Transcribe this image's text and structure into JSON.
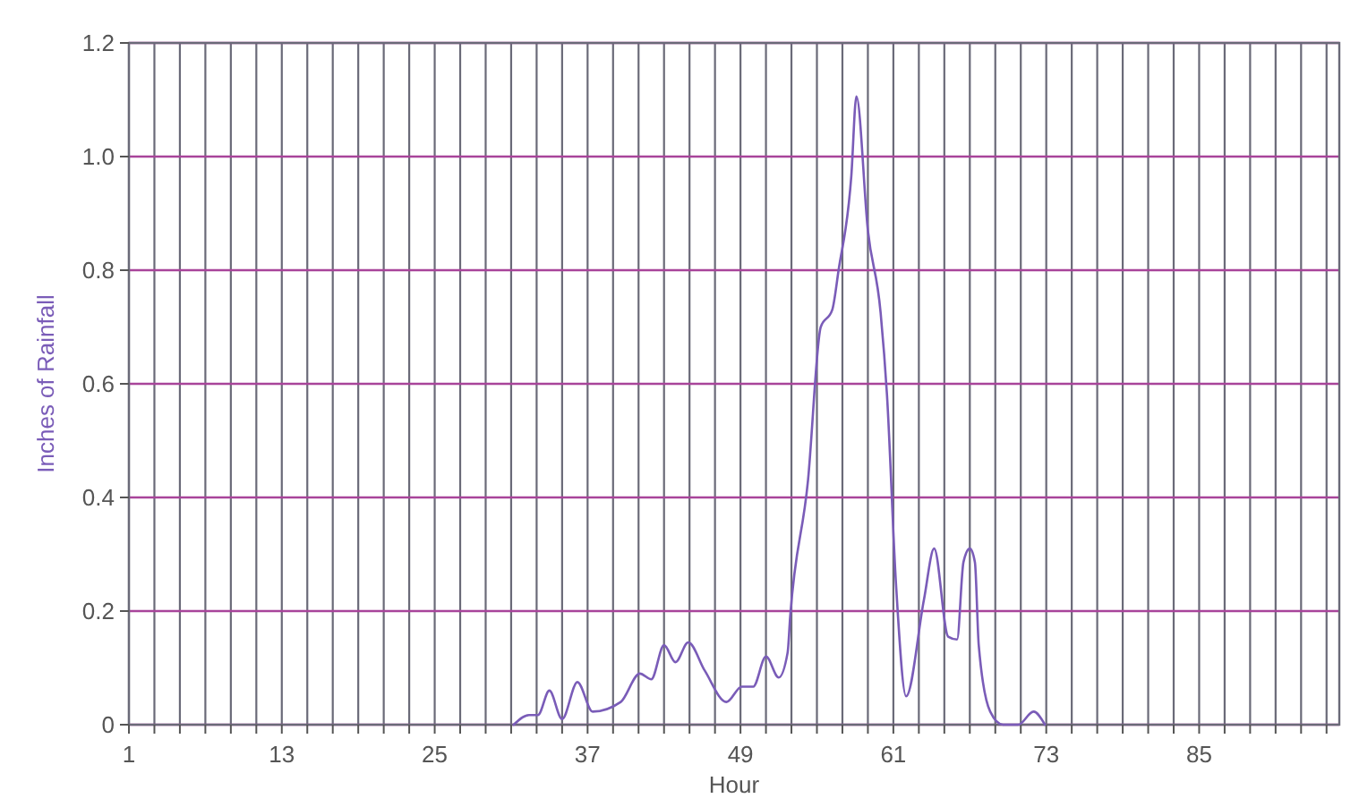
{
  "chart_data": {
    "type": "line",
    "xlabel": "Hour",
    "ylabel": "Inches of Rainfall",
    "x": [
      31.2,
      32.4,
      33.1,
      34,
      35,
      36.2,
      37.4,
      39.6,
      41.1,
      42,
      43,
      43.9,
      44.9,
      46.2,
      47.9,
      49.1,
      50,
      51,
      52,
      52.7,
      52.9,
      54.3,
      55.3,
      56.2,
      56.7,
      57.7,
      58.1,
      59,
      60,
      60.5,
      61.2,
      62,
      63.4,
      64.2,
      65.3,
      66,
      66.5,
      67,
      67.4,
      67.7,
      68.6,
      69.6,
      70.8,
      72,
      72.9
    ],
    "series": [
      {
        "color": "#7a5cb8",
        "values": [
          0,
          0.017,
          0.017,
          0.06,
          0.01,
          0.075,
          0.023,
          0.04,
          0.09,
          0.08,
          0.14,
          0.11,
          0.145,
          0.095,
          0.04,
          0.067,
          0.067,
          0.12,
          0.083,
          0.127,
          0.19,
          0.43,
          0.7,
          0.73,
          0.8,
          0.966,
          1.106,
          0.87,
          0.725,
          0.58,
          0.25,
          0.05,
          0.22,
          0.31,
          0.155,
          0.15,
          0.286,
          0.31,
          0.286,
          0.14,
          0.023,
          0,
          0,
          0.023,
          0
        ]
      }
    ],
    "xlim": [
      1,
      96
    ],
    "xticks": [
      1,
      {
        "value": 3,
        "label": null
      },
      {
        "value": 5,
        "label": null
      },
      {
        "value": 7,
        "label": null
      },
      {
        "value": 9,
        "label": null
      },
      {
        "value": 11,
        "label": null
      },
      13,
      {
        "value": 15,
        "label": null
      },
      {
        "value": 17,
        "label": null
      },
      {
        "value": 19,
        "label": null
      },
      {
        "value": 21,
        "label": null
      },
      {
        "value": 23,
        "label": null
      },
      25,
      {
        "value": 27,
        "label": null
      },
      {
        "value": 29,
        "label": null
      },
      {
        "value": 31,
        "label": null
      },
      {
        "value": 33,
        "label": null
      },
      {
        "value": 35,
        "label": null
      },
      37,
      {
        "value": 39,
        "label": null
      },
      {
        "value": 41,
        "label": null
      },
      {
        "value": 43,
        "label": null
      },
      {
        "value": 45,
        "label": null
      },
      {
        "value": 47,
        "label": null
      },
      49,
      {
        "value": 51,
        "label": null
      },
      {
        "value": 53,
        "label": null
      },
      {
        "value": 55,
        "label": null
      },
      {
        "value": 57,
        "label": null
      },
      {
        "value": 59,
        "label": null
      },
      61,
      {
        "value": 63,
        "label": null
      },
      {
        "value": 65,
        "label": null
      },
      {
        "value": 67,
        "label": null
      },
      {
        "value": 69,
        "label": null
      },
      {
        "value": 71,
        "label": null
      },
      73,
      {
        "value": 75,
        "label": null
      },
      {
        "value": 77,
        "label": null
      },
      {
        "value": 79,
        "label": null
      },
      {
        "value": 81,
        "label": null
      },
      {
        "value": 83,
        "label": null
      },
      85,
      {
        "value": 87,
        "label": null
      },
      {
        "value": 89,
        "label": null
      },
      {
        "value": 91,
        "label": null
      },
      {
        "value": 93,
        "label": null
      },
      {
        "value": 95,
        "label": null
      }
    ],
    "ylim": [
      0,
      1.2
    ],
    "yticks": [
      0,
      0.2,
      0.4,
      0.6,
      0.8,
      {
        "value": 1,
        "label": "1.0"
      },
      1.2
    ],
    "grid": true,
    "marker": "none",
    "line_style": "solid"
  }
}
